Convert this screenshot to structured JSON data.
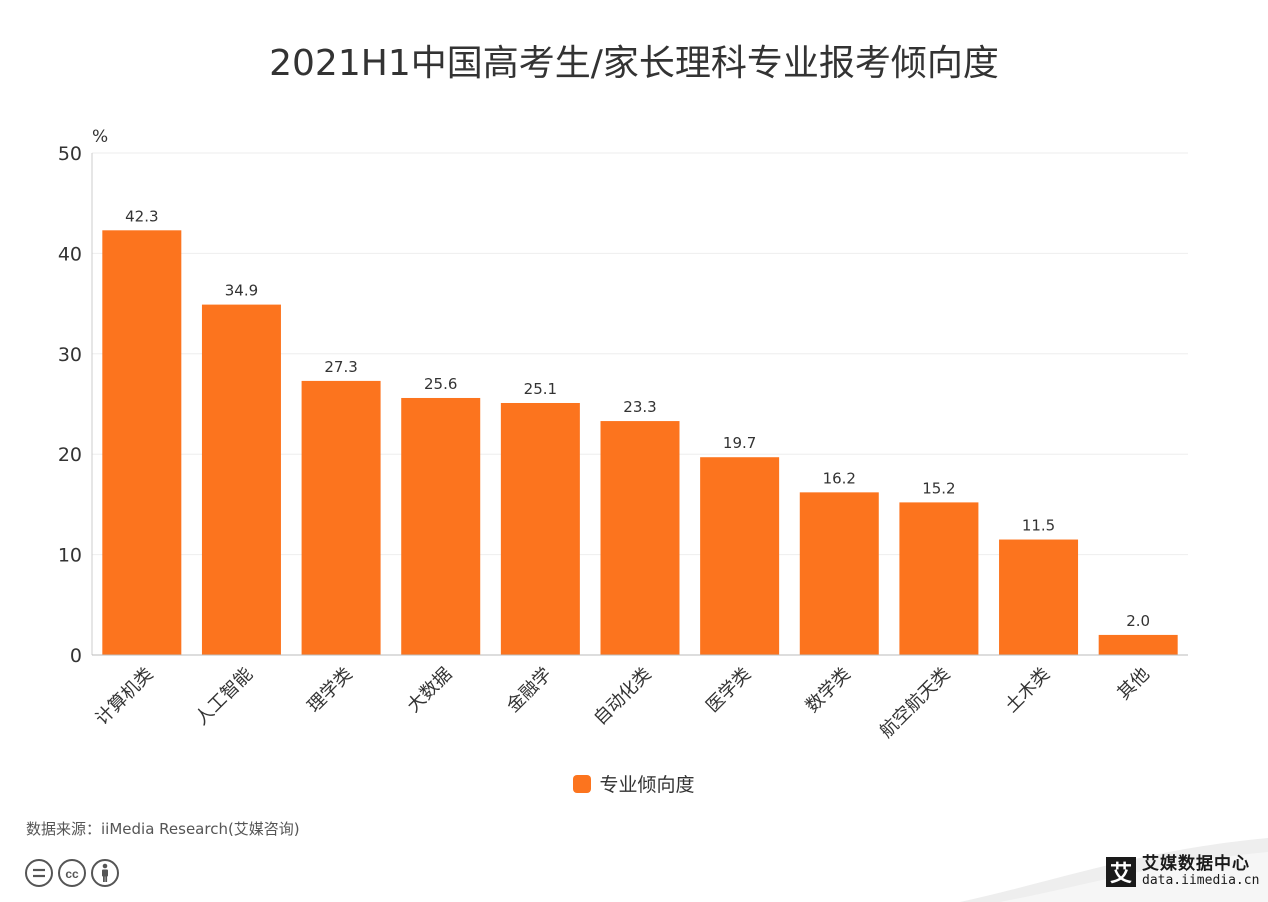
{
  "chart_data": {
    "type": "bar",
    "title": "2021H1中国高考生/家长理科专业报考倾向度",
    "unit": "%",
    "categories": [
      "计算机类",
      "人工智能",
      "理学类",
      "大数据",
      "金融学",
      "自动化类",
      "医学类",
      "数学类",
      "航空航天类",
      "土木类",
      "其他"
    ],
    "series": [
      {
        "name": "专业倾向度",
        "values": [
          42.3,
          34.9,
          27.3,
          25.6,
          25.1,
          23.3,
          19.7,
          16.2,
          15.2,
          11.5,
          2.0
        ],
        "color": "#fc741e"
      }
    ],
    "value_labels": [
      "42.3",
      "34.9",
      "27.3",
      "25.6",
      "25.1",
      "23.3",
      "19.7",
      "16.2",
      "15.2",
      "11.5",
      "2.0"
    ],
    "ylim": [
      0,
      50
    ],
    "yticks": [
      "0",
      "10",
      "20",
      "30",
      "40",
      "50"
    ],
    "grid": true,
    "legend_position": "bottom"
  },
  "source_text": "数据来源：iiMedia Research(艾媒咨询)",
  "logo": {
    "mark": "艾",
    "name": "艾媒数据中心",
    "url": "data.iimedia.cn"
  },
  "license_icons": [
    "equals-icon",
    "cc-icon",
    "person-icon"
  ]
}
